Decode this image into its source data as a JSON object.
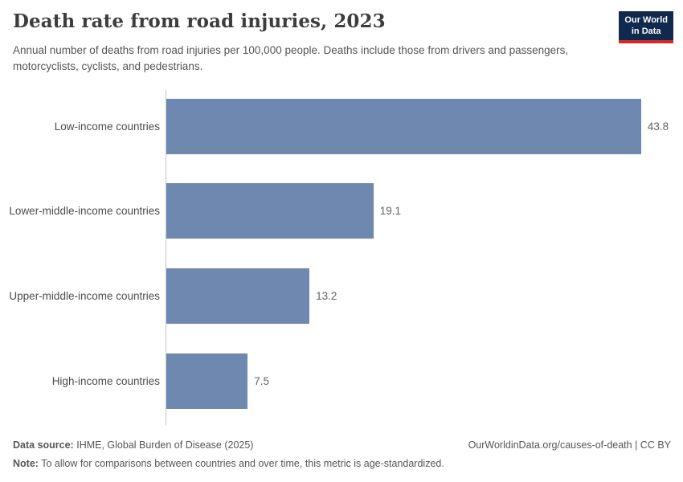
{
  "header": {
    "title": "Death rate from road injuries, 2023",
    "subtitle": "Annual number of deaths from road injuries per 100,000 people. Deaths include those from drivers and passengers, motorcyclists, cyclists, and pedestrians.",
    "logo": {
      "line1": "Our World",
      "line2": "in Data"
    }
  },
  "chart_data": {
    "type": "bar",
    "orientation": "horizontal",
    "title": "Death rate from road injuries, 2023",
    "xlabel": "",
    "ylabel": "",
    "categories": [
      "Low-income countries",
      "Lower-middle-income countries",
      "Upper-middle-income countries",
      "High-income countries"
    ],
    "values": [
      43.8,
      19.1,
      13.2,
      7.5
    ],
    "value_labels": [
      "43.8",
      "19.1",
      "13.2",
      "7.5"
    ],
    "xlim": [
      0,
      47
    ],
    "grid": false,
    "legend": false,
    "bar_color": "#6f88b0",
    "axis_color": "#c8c8c8"
  },
  "footer": {
    "data_source_label": "Data source:",
    "data_source_value": "IHME, Global Burden of Disease (2025)",
    "link_text": "OurWorldinData.org/causes-of-death | CC BY",
    "note_label": "Note:",
    "note_value": "To allow for comparisons between countries and over time, this metric is age-standardized."
  },
  "colors": {
    "bar": "#6f88b0",
    "logo_background": "#12294f",
    "logo_accent": "#d22b26",
    "title_text": "#3d3d3d",
    "body_text": "#555555"
  }
}
